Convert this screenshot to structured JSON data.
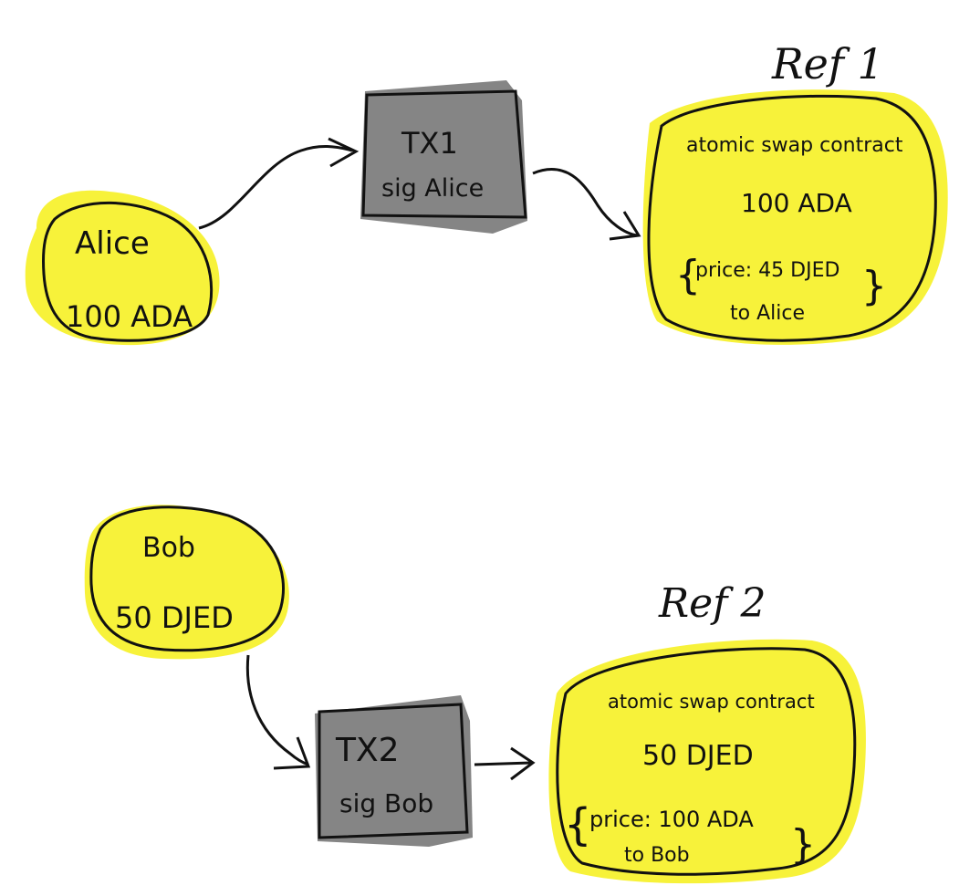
{
  "colors": {
    "highlight": "#f7f23a",
    "tx_fill": "#858585",
    "ink": "#111111",
    "background": "#ffffff"
  },
  "utxos": {
    "alice": {
      "owner": "Alice",
      "amount": "100 ADA"
    },
    "bob": {
      "owner": "Bob",
      "amount": "50 DJED"
    }
  },
  "transactions": {
    "tx1": {
      "name": "TX1",
      "signature": "sig Alice"
    },
    "tx2": {
      "name": "TX2",
      "signature": "sig Bob"
    }
  },
  "contracts": {
    "ref1": {
      "label": "Ref 1",
      "title": "atomic swap contract",
      "amount": "100 ADA",
      "price_line": "price: 45 DJED",
      "recipient_line": "to Alice"
    },
    "ref2": {
      "label": "Ref 2",
      "title": "atomic swap contract",
      "amount": "50 DJED",
      "price_line": "price: 100 ADA",
      "recipient_line": "to Bob"
    }
  }
}
